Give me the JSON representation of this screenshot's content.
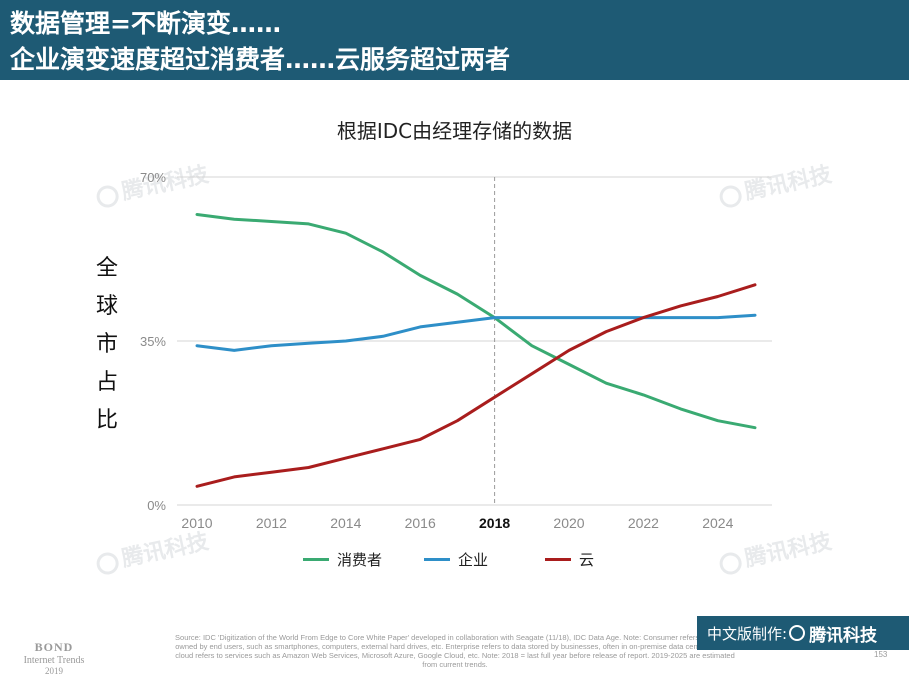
{
  "header": {
    "line1": "数据管理=不断演变……",
    "line2": "企业演变速度超过消费者……云服务超过两者"
  },
  "y_axis_label_chars": [
    "全",
    "球",
    "市",
    "占",
    "比"
  ],
  "watermark": {
    "text": "腾讯科技",
    "icon": "tencent-logo-icon"
  },
  "chart_data": {
    "type": "line",
    "title": "根据IDC由经理存储的数据",
    "xlabel": "",
    "ylabel": "全球市占比",
    "x": [
      2010,
      2011,
      2012,
      2013,
      2014,
      2015,
      2016,
      2017,
      2018,
      2019,
      2020,
      2021,
      2022,
      2023,
      2024,
      2025
    ],
    "x_ticks": [
      "2010",
      "2012",
      "2014",
      "2016",
      "2018",
      "2020",
      "2022",
      "2024"
    ],
    "x_tick_values": [
      2010,
      2012,
      2014,
      2016,
      2018,
      2020,
      2022,
      2024
    ],
    "highlight_tick": "2018",
    "highlight_x": 2018,
    "y_ticks": [
      "70%",
      "35%",
      "0%"
    ],
    "y_tick_values": [
      70,
      35,
      0
    ],
    "xlim": [
      2010,
      2025
    ],
    "ylim": [
      0,
      70
    ],
    "grid": true,
    "legend_position": "bottom",
    "series": [
      {
        "name": "消费者",
        "color": "#3aaa72",
        "values": [
          62,
          61,
          60.5,
          60,
          58,
          54,
          49,
          45,
          40,
          34,
          30,
          26,
          23.5,
          20.5,
          18,
          16.5
        ]
      },
      {
        "name": "企业",
        "color": "#2e8fc8",
        "values": [
          34,
          33,
          34,
          34.5,
          35,
          36,
          38,
          39,
          40,
          40,
          40,
          40,
          40,
          40,
          40,
          40.5
        ]
      },
      {
        "name": "云",
        "color": "#a91d1d",
        "values": [
          4,
          6,
          7,
          8,
          10,
          12,
          14,
          18,
          23,
          28,
          33,
          37,
          40,
          42.5,
          44.5,
          47
        ]
      }
    ]
  },
  "footnote": "Source: IDC 'Digitization of the World From Edge to Core White Paper' developed in collaboration with Seagate (11/18), IDC Data Age. Note: Consumer refers to devices owned by end users, such as smartphones, computers, external hard drives, etc. Enterprise refers to data stored by businesses, often in on-premise data centers. Public cloud refers to services such as Amazon Web Services, Microsoft Azure, Google Cloud, etc. Note: 2018 = last full year before release of report. 2019-2025 are estimated from current trends.",
  "bond": {
    "line1": "BOND",
    "line2": "Internet Trends",
    "line3": "2019"
  },
  "badge": {
    "prefix": "中文版制作:",
    "brand": "腾讯科技",
    "icon": "tencent-logo-icon"
  },
  "page_number": "153"
}
